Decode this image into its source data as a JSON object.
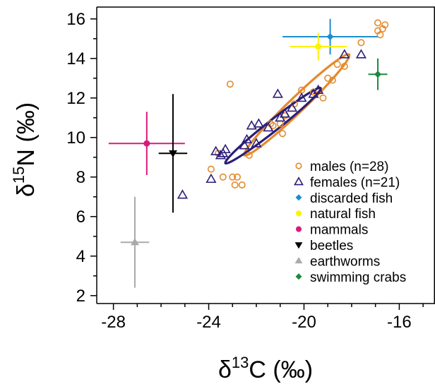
{
  "chart_data": {
    "type": "scatter",
    "xlabel": "δ13C (‰)",
    "ylabel": "δ15N (‰)",
    "xlim": [
      -28.7,
      -14.5
    ],
    "ylim": [
      1.6,
      16.6
    ],
    "x_ticks": [
      -28,
      -24,
      -20,
      -16
    ],
    "y_ticks": [
      2,
      4,
      6,
      8,
      10,
      12,
      14,
      16
    ],
    "grid": false,
    "legend_placement": "bottom-right",
    "series": [
      {
        "name": "males (n=28)",
        "marker": "open-circle",
        "color": "#E58A2C",
        "x": [
          -16.9,
          -16.6,
          -16.7,
          -16.8,
          -16.9,
          -17.6,
          -18.3,
          -18.6,
          -18.8,
          -19.0,
          -19.2,
          -19.6,
          -20.1,
          -20.4,
          -20.8,
          -21.0,
          -21.3,
          -22.3,
          -23.1,
          -23.4,
          -23.9,
          -23.6,
          -23.0,
          -22.9,
          -22.8,
          -22.6,
          -21.4,
          -20.9
        ],
        "y": [
          15.8,
          15.7,
          15.5,
          15.2,
          15.4,
          14.8,
          13.6,
          13.7,
          12.9,
          13.0,
          12.0,
          12.3,
          12.4,
          11.7,
          11.1,
          10.7,
          10.6,
          9.1,
          12.7,
          8.0,
          8.4,
          9.2,
          8.0,
          7.6,
          8.0,
          7.6,
          10.7,
          10.2
        ]
      },
      {
        "name": "females (n=21)",
        "marker": "open-triangle",
        "color": "#2B1E78",
        "x": [
          -17.6,
          -18.3,
          -19.4,
          -19.6,
          -20.1,
          -20.5,
          -20.8,
          -21.0,
          -21.1,
          -21.5,
          -21.9,
          -22.2,
          -22.4,
          -22.0,
          -22.5,
          -23.3,
          -23.4,
          -23.5,
          -23.7,
          -23.9,
          -25.1
        ],
        "y": [
          14.2,
          14.2,
          12.4,
          12.2,
          12.0,
          11.5,
          11.2,
          11.0,
          12.2,
          10.5,
          10.7,
          10.6,
          9.9,
          9.7,
          9.6,
          9.4,
          9.2,
          9.1,
          9.3,
          7.9,
          7.1
        ]
      },
      {
        "name": "discarded fish",
        "marker": "filled-diamond",
        "color": "#1C8DD0",
        "x": [
          -18.9
        ],
        "y": [
          15.1
        ],
        "x_err": 2.0,
        "y_err": 0.9
      },
      {
        "name": "natural fish",
        "marker": "filled-circle",
        "color": "#FFF200",
        "x": [
          -19.4
        ],
        "y": [
          14.6
        ],
        "x_err": 1.2,
        "y_err": 0.7
      },
      {
        "name": "mammals",
        "marker": "filled-circle",
        "color": "#D61C7B",
        "x": [
          -26.6
        ],
        "y": [
          9.7
        ],
        "x_err": 1.6,
        "y_err": 1.6
      },
      {
        "name": "beetles",
        "marker": "filled-down-triangle",
        "color": "#000000",
        "x": [
          -25.5
        ],
        "y": [
          9.2
        ],
        "x_err": 0.6,
        "y_err": 3.0
      },
      {
        "name": "earthworms",
        "marker": "filled-triangle",
        "color": "#AAAAAA",
        "x": [
          -27.1
        ],
        "y": [
          4.7
        ],
        "x_err": 0.6,
        "y_err": 2.3
      },
      {
        "name": "swimming crabs",
        "marker": "filled-diamond",
        "color": "#1A8A3E",
        "x": [
          -16.9
        ],
        "y": [
          13.2
        ],
        "x_err": 0.4,
        "y_err": 0.8
      }
    ],
    "ellipses": [
      {
        "series": "males (n=28)",
        "color": "#E58A2C",
        "p1": [
          -22.5,
          9.1
        ],
        "p2": [
          -18.1,
          14.2
        ],
        "minor_halfwidth": 0.38
      },
      {
        "series": "females (n=21)",
        "color": "#2B1E78",
        "p1": [
          -23.3,
          8.7
        ],
        "p2": [
          -19.3,
          12.5
        ],
        "minor_halfwidth": 0.28
      }
    ]
  }
}
